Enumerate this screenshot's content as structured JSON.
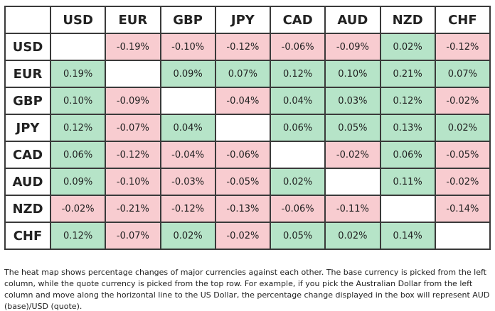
{
  "table": {
    "columns": [
      "USD",
      "EUR",
      "GBP",
      "JPY",
      "CAD",
      "AUD",
      "NZD",
      "CHF"
    ],
    "positive_color": "#b6e4c8",
    "negative_color": "#f8ccd0",
    "rows": [
      {
        "label": "USD",
        "values": [
          null,
          "-0.19%",
          "-0.10%",
          "-0.12%",
          "-0.06%",
          "-0.09%",
          "0.02%",
          "-0.12%"
        ]
      },
      {
        "label": "EUR",
        "values": [
          "0.19%",
          null,
          "0.09%",
          "0.07%",
          "0.12%",
          "0.10%",
          "0.21%",
          "0.07%"
        ]
      },
      {
        "label": "GBP",
        "values": [
          "0.10%",
          "-0.09%",
          null,
          "-0.04%",
          "0.04%",
          "0.03%",
          "0.12%",
          "-0.02%"
        ]
      },
      {
        "label": "JPY",
        "values": [
          "0.12%",
          "-0.07%",
          "0.04%",
          null,
          "0.06%",
          "0.05%",
          "0.13%",
          "0.02%"
        ]
      },
      {
        "label": "CAD",
        "values": [
          "0.06%",
          "-0.12%",
          "-0.04%",
          "-0.06%",
          null,
          "-0.02%",
          "0.06%",
          "-0.05%"
        ]
      },
      {
        "label": "AUD",
        "values": [
          "0.09%",
          "-0.10%",
          "-0.03%",
          "-0.05%",
          "0.02%",
          null,
          "0.11%",
          "-0.02%"
        ]
      },
      {
        "label": "NZD",
        "values": [
          "-0.02%",
          "-0.21%",
          "-0.12%",
          "-0.13%",
          "-0.06%",
          "-0.11%",
          null,
          "-0.14%"
        ]
      },
      {
        "label": "CHF",
        "values": [
          "0.12%",
          "-0.07%",
          "0.02%",
          "-0.02%",
          "0.05%",
          "0.02%",
          "0.14%",
          null
        ]
      }
    ]
  },
  "caption": "The heat map shows percentage changes of major currencies against each other. The base currency is picked from the left column, while the quote currency is picked from the top row. For example, if you pick the Australian Dollar from the left column and move along the horizontal line to the US Dollar, the percentage change displayed in the box will represent AUD (base)/USD (quote)."
}
